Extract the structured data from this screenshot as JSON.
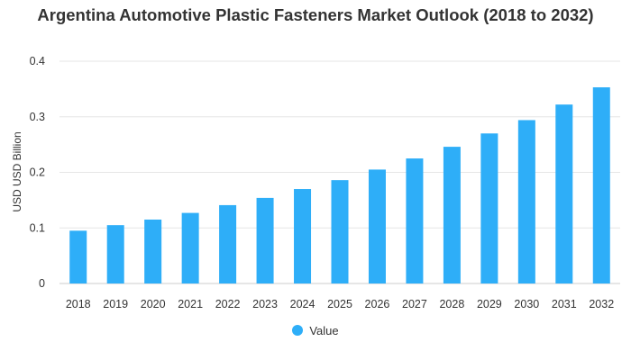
{
  "chart_data": {
    "type": "bar",
    "title": "Argentina Automotive Plastic Fasteners Market Outlook (2018 to 2032)",
    "xlabel": "",
    "ylabel": "USD USD Billion",
    "categories": [
      "2018",
      "2019",
      "2020",
      "2021",
      "2022",
      "2023",
      "2024",
      "2025",
      "2026",
      "2027",
      "2028",
      "2029",
      "2030",
      "2031",
      "2032"
    ],
    "series": [
      {
        "name": "Value",
        "values": [
          0.095,
          0.105,
          0.115,
          0.127,
          0.141,
          0.154,
          0.17,
          0.186,
          0.205,
          0.225,
          0.246,
          0.27,
          0.294,
          0.322,
          0.353
        ]
      }
    ],
    "ylim": [
      0,
      0.4
    ],
    "yticks": [
      "0",
      "0.1",
      "0.2",
      "0.3",
      "0.4"
    ],
    "grid": true,
    "legend_position": "bottom",
    "colors": {
      "bar": "#2eaef8",
      "grid": "#e6e6e6",
      "text": "#333333"
    }
  }
}
